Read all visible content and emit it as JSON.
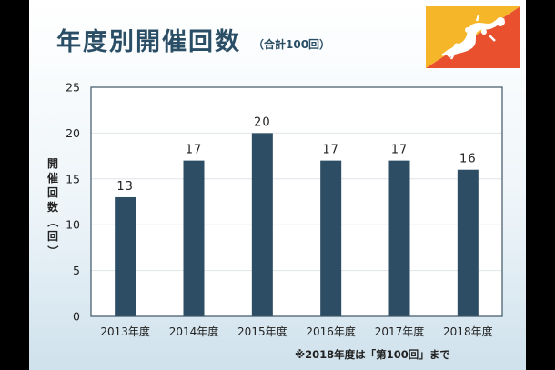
{
  "slide": {
    "title": "年度別開催回数",
    "subtitle": "（合計100回）",
    "footnote": "※2018年度は「第100回」まで",
    "ylabel_chars": [
      "開",
      "催",
      "回",
      "数",
      "（",
      "回",
      "）"
    ]
  },
  "colors": {
    "bar": "#2c4d63",
    "title": "#2a4e66",
    "flag_yellow": "#f6b62a",
    "flag_red": "#e8502e"
  },
  "flag": {
    "icon": "bhutan-flag-icon"
  },
  "chart_data": {
    "type": "bar",
    "title": "年度別開催回数",
    "subtitle": "（合計100回）",
    "ylabel": "開催回数（回）",
    "xlabel": "",
    "categories": [
      "2013年度",
      "2014年度",
      "2015年度",
      "2016年度",
      "2017年度",
      "2018年度"
    ],
    "values": [
      13,
      17,
      20,
      17,
      17,
      16
    ],
    "data_labels": [
      "13",
      "17",
      "20",
      "17",
      "17",
      "16"
    ],
    "ylim": [
      0,
      25
    ],
    "yticks": [
      0,
      5,
      10,
      15,
      20,
      25
    ],
    "ytick_labels": [
      "0",
      "5",
      "10",
      "15",
      "20",
      "25"
    ],
    "grid": true,
    "legend": "none"
  }
}
